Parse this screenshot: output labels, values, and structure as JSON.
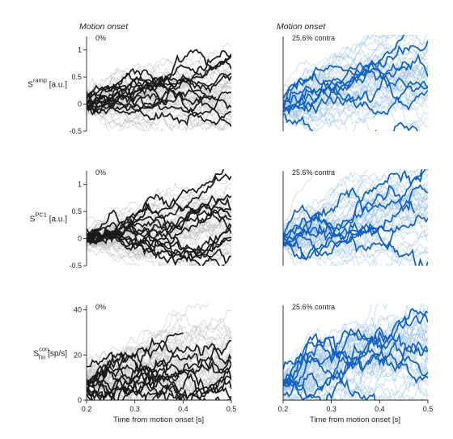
{
  "figure": {
    "column_titles": [
      "Motion onset",
      "Motion onset"
    ],
    "xlabel": "Time from motion onset [s]"
  },
  "chart_data": [
    {
      "type": "line",
      "panel": "row1-left",
      "condition": "0%",
      "ylabel": {
        "base": "S",
        "sup": "ramp",
        "sub": "",
        "unit": " [a.u.]"
      },
      "xlim": [
        0.2,
        0.5
      ],
      "ylim": [
        -0.5,
        1.25
      ],
      "xticks": [],
      "yticks": [
        -0.5,
        0,
        0.5,
        1
      ],
      "ytick_labels": [
        "-0.5",
        "0",
        "0.5",
        "1"
      ],
      "color_background": "#bdbdbd",
      "color_highlight": "#1a1a1a",
      "n_background": 45,
      "n_highlight": 14,
      "y_start": 0.0,
      "spread": 0.1,
      "drift": 1.0,
      "noise": 0.05,
      "seed": 11
    },
    {
      "type": "line",
      "panel": "row1-right",
      "condition": "25.6% contra",
      "ylabel": {
        "base": "",
        "sup": "",
        "sub": "",
        "unit": ""
      },
      "xlim": [
        0.2,
        0.5
      ],
      "ylim": [
        -0.5,
        1.25
      ],
      "xticks": [],
      "yticks": [],
      "color_background": "#9ec2e8",
      "color_highlight": "#1060c0",
      "n_background": 45,
      "n_highlight": 8,
      "y_start": 0.0,
      "spread": 0.12,
      "drift": 2.3,
      "noise": 0.06,
      "seed": 23
    },
    {
      "type": "line",
      "panel": "row2-left",
      "condition": "0%",
      "ylabel": {
        "base": "S",
        "sup": "PC1",
        "sub": "",
        "unit": " [a.u.]"
      },
      "xlim": [
        0.2,
        0.5
      ],
      "ylim": [
        -0.5,
        1.25
      ],
      "xticks": [],
      "yticks": [
        -0.5,
        0,
        0.5,
        1
      ],
      "ytick_labels": [
        "-0.5",
        "0",
        "0.5",
        "1"
      ],
      "color_background": "#bdbdbd",
      "color_highlight": "#1a1a1a",
      "n_background": 45,
      "n_highlight": 14,
      "y_start": 0.0,
      "spread": 0.1,
      "drift": 1.1,
      "noise": 0.05,
      "seed": 37
    },
    {
      "type": "line",
      "panel": "row2-right",
      "condition": "25.6% contra",
      "ylabel": {
        "base": "",
        "sup": "",
        "sub": "",
        "unit": ""
      },
      "xlim": [
        0.2,
        0.5
      ],
      "ylim": [
        -0.5,
        1.25
      ],
      "xticks": [],
      "yticks": [],
      "color_background": "#9ec2e8",
      "color_highlight": "#1060c0",
      "n_background": 45,
      "n_highlight": 8,
      "y_start": 0.0,
      "spread": 0.1,
      "drift": 2.4,
      "noise": 0.06,
      "seed": 51
    },
    {
      "type": "line",
      "panel": "row3-left",
      "condition": "0%",
      "ylabel": {
        "base": "S",
        "sup": "con",
        "sub": "Tin",
        "unit": " [sp/s]"
      },
      "xlim": [
        0.2,
        0.5
      ],
      "ylim": [
        0,
        42
      ],
      "xticks": [
        0.2,
        0.3,
        0.4,
        0.5
      ],
      "xtick_labels": [
        "0.2",
        "0.3",
        "0.4",
        "0.5"
      ],
      "yticks": [
        0,
        20,
        40
      ],
      "ytick_labels": [
        "0",
        "20",
        "40"
      ],
      "color_background": "#bdbdbd",
      "color_highlight": "#1a1a1a",
      "n_background": 45,
      "n_highlight": 14,
      "y_start": 8,
      "spread": 3,
      "drift": 45,
      "noise": 1.6,
      "seed": 63
    },
    {
      "type": "line",
      "panel": "row3-right",
      "condition": "25.6% contra",
      "ylabel": {
        "base": "",
        "sup": "",
        "sub": "",
        "unit": ""
      },
      "xlim": [
        0.2,
        0.5
      ],
      "ylim": [
        0,
        42
      ],
      "xticks": [
        0.2,
        0.3,
        0.4,
        0.5
      ],
      "xtick_labels": [
        "0.2",
        "0.3",
        "0.4",
        "0.5"
      ],
      "yticks": [],
      "color_background": "#9ec2e8",
      "color_highlight": "#1060c0",
      "n_background": 45,
      "n_highlight": 8,
      "y_start": 7,
      "spread": 2.5,
      "drift": 75,
      "noise": 1.8,
      "seed": 79
    }
  ]
}
